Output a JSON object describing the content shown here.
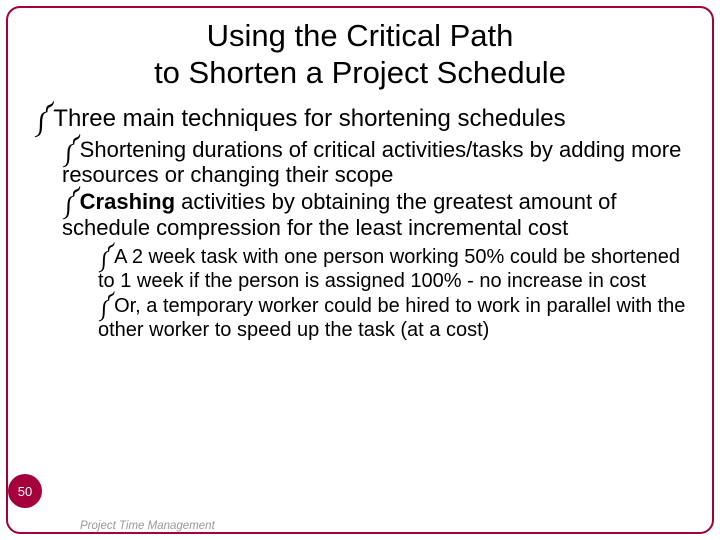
{
  "colors": {
    "frame_border": "#a5003c",
    "badge_bg": "#a5003c",
    "badge_text": "#ffffff",
    "text": "#000000",
    "footer_text": "#555555",
    "background": "#ffffff"
  },
  "typography": {
    "title_fontsize": 31,
    "lvl1_fontsize": 24,
    "lvl2_fontsize": 22,
    "lvl3_fontsize": 20,
    "font_family": "Arial"
  },
  "bullet_glyph": "༼",
  "title": {
    "line1": "Using the Critical Path",
    "line2": "to Shorten a Project Schedule"
  },
  "lvl1_text": "Three main techniques for shortening schedules",
  "lvl2": {
    "item1": {
      "bold": "",
      "rest": "Shortening durations of critical activities/tasks by adding more resources or changing their scope"
    },
    "item2": {
      "bold": "Crashing",
      "rest": " activities by obtaining the greatest amount of schedule compression for the least incremental cost"
    }
  },
  "lvl3": {
    "item1": "A 2 week task with one person working 50% could be shortened to 1 week if the person is assigned 100% - no increase in cost",
    "item2": "Or, a temporary worker could be hired to work in parallel with the other worker to speed up the task (at a cost)"
  },
  "page_number": "50",
  "footer": "Project Time Management"
}
